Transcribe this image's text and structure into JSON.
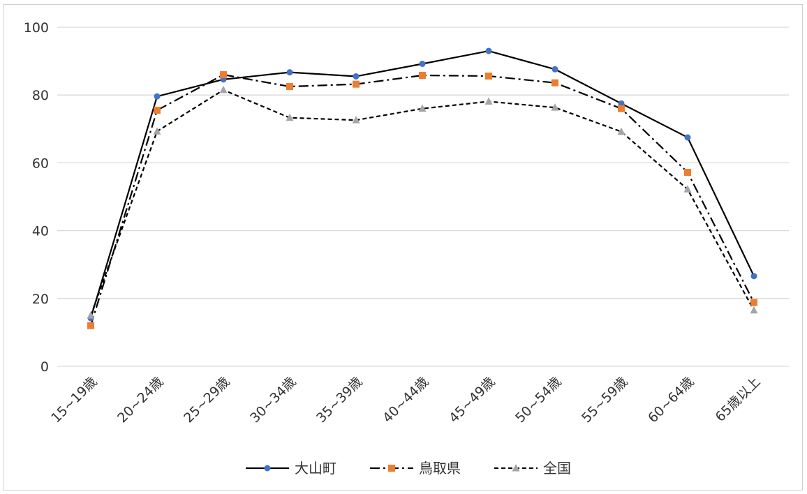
{
  "chart_data": {
    "type": "line",
    "categories": [
      "15~19歳",
      "20~24歳",
      "25~29歳",
      "30~34歳",
      "35~39歳",
      "40~44歳",
      "45~49歳",
      "50~54歳",
      "55~59歳",
      "60~64歳",
      "65歳以上"
    ],
    "series": [
      {
        "name": "大山町",
        "values": [
          14.2,
          79.6,
          84.6,
          86.7,
          85.5,
          89.2,
          93.0,
          87.6,
          77.5,
          67.5,
          26.6
        ],
        "color": "#000000",
        "marker_color": "#4472c4",
        "marker": "circle",
        "dash": "solid"
      },
      {
        "name": "鳥取県",
        "values": [
          12.0,
          75.5,
          86.0,
          82.5,
          83.2,
          85.8,
          85.6,
          83.6,
          76.0,
          57.2,
          18.8
        ],
        "color": "#000000",
        "marker_color": "#ed7d31",
        "marker": "square",
        "dash": "dashdot"
      },
      {
        "name": "全国",
        "values": [
          15.0,
          69.3,
          81.5,
          73.3,
          72.6,
          76.0,
          78.1,
          76.3,
          69.2,
          52.2,
          16.5
        ],
        "color": "#000000",
        "marker_color": "#a5a5a5",
        "marker": "triangle",
        "dash": "dashed"
      }
    ],
    "y_ticks": [
      "0",
      "20",
      "40",
      "60",
      "80",
      "100"
    ],
    "ylim": [
      0,
      100
    ],
    "grid": true,
    "legend_position": "bottom"
  }
}
